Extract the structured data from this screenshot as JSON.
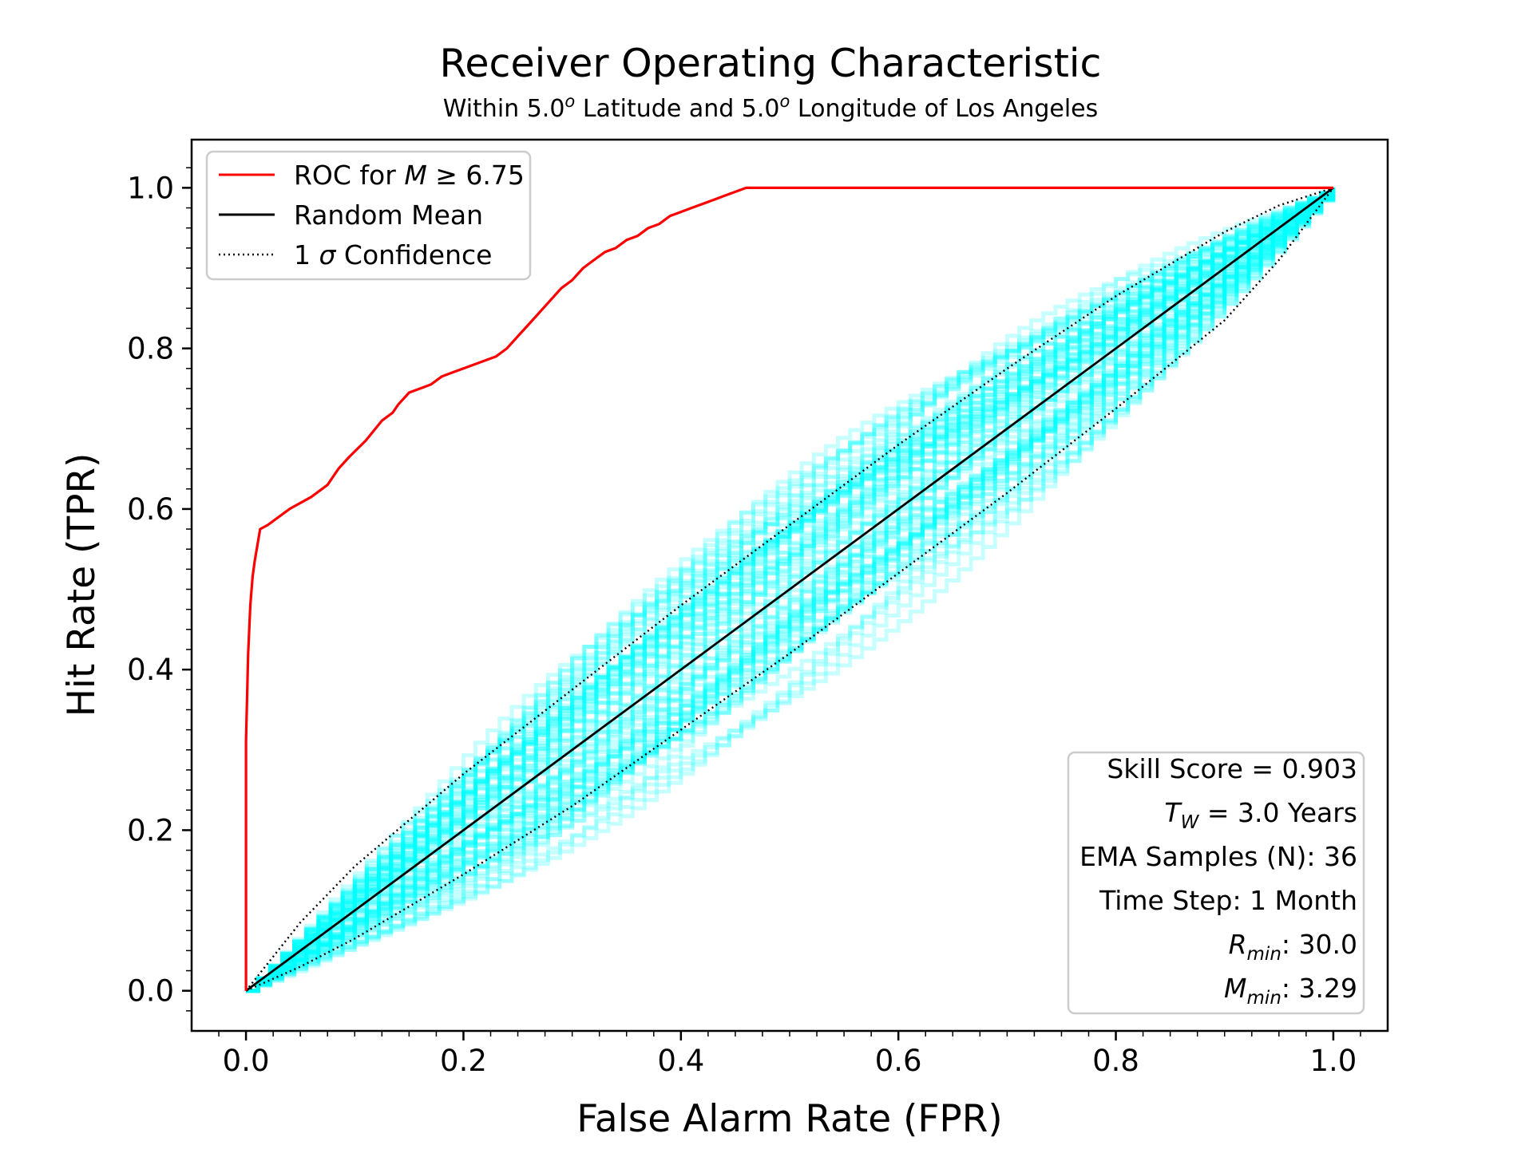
{
  "chart_data": {
    "type": "line",
    "title": "Receiver Operating Characteristic",
    "subtitle_parts": {
      "a": "Within 5.0",
      "a_sup": "o",
      "b": " Latitude and 5.0",
      "b_sup": "o",
      "c": " Longitude of Los Angeles"
    },
    "xlabel": "False Alarm Rate (FPR)",
    "ylabel": "Hit Rate (TPR)",
    "xlim": [
      -0.05,
      1.05
    ],
    "ylim": [
      -0.05,
      1.06
    ],
    "xticks": [
      "0.0",
      "0.2",
      "0.4",
      "0.6",
      "0.8",
      "1.0"
    ],
    "yticks": [
      "0.0",
      "0.2",
      "0.4",
      "0.6",
      "0.8",
      "1.0"
    ],
    "grid": false,
    "legend": {
      "placement": "top-left",
      "entries": [
        {
          "label_prefix": "ROC for ",
          "label_math": "M",
          "label_suffix": " ≥ 6.75",
          "color": "#ff0000",
          "style": "solid"
        },
        {
          "label_prefix": "Random Mean",
          "label_math": "",
          "label_suffix": "",
          "color": "#000000",
          "style": "solid"
        },
        {
          "label_prefix": "1 ",
          "label_math": "σ",
          "label_suffix": " Confidence",
          "color": "#000000",
          "style": "dotted"
        }
      ]
    },
    "info_box": {
      "placement": "bottom-right",
      "skill_score": "Skill Score = 0.903",
      "tw_sym": "T",
      "tw_sub": "W",
      "tw_rest": " = 3.0 Years",
      "ema": "EMA Samples (N): 36",
      "time_step": "Time Step: 1 Month",
      "rmin_sym": "R",
      "rmin_sub": "min",
      "rmin_rest": ": 30.0",
      "mmin_sym": "M",
      "mmin_sub": "min",
      "mmin_rest": ": 3.29"
    },
    "series": [
      {
        "name": "ROC for M ≥ 6.75",
        "color": "#ff0000",
        "x": [
          0.0,
          0.0,
          0.0,
          0.002,
          0.004,
          0.006,
          0.008,
          0.013,
          0.02,
          0.04,
          0.06,
          0.075,
          0.085,
          0.095,
          0.11,
          0.125,
          0.135,
          0.14,
          0.15,
          0.16,
          0.17,
          0.18,
          0.19,
          0.2,
          0.21,
          0.22,
          0.23,
          0.24,
          0.25,
          0.26,
          0.27,
          0.28,
          0.29,
          0.3,
          0.31,
          0.32,
          0.33,
          0.34,
          0.35,
          0.36,
          0.37,
          0.38,
          0.39,
          0.4,
          0.41,
          0.42,
          0.43,
          0.44,
          0.45,
          0.46,
          0.55,
          0.7,
          0.85,
          1.0
        ],
        "y": [
          0.0,
          0.245,
          0.31,
          0.42,
          0.48,
          0.515,
          0.535,
          0.575,
          0.58,
          0.6,
          0.615,
          0.63,
          0.65,
          0.665,
          0.685,
          0.71,
          0.72,
          0.73,
          0.745,
          0.75,
          0.755,
          0.765,
          0.77,
          0.775,
          0.78,
          0.785,
          0.79,
          0.8,
          0.815,
          0.83,
          0.845,
          0.86,
          0.875,
          0.885,
          0.9,
          0.91,
          0.92,
          0.925,
          0.935,
          0.94,
          0.95,
          0.955,
          0.965,
          0.97,
          0.975,
          0.98,
          0.985,
          0.99,
          0.995,
          1.0,
          1.0,
          1.0,
          1.0,
          1.0
        ]
      },
      {
        "name": "Random Mean",
        "color": "#000000",
        "x": [
          0.0,
          1.0
        ],
        "y": [
          0.0,
          1.0
        ]
      },
      {
        "name": "1 σ upper",
        "color": "#000000",
        "x": [
          0.0,
          0.05,
          0.1,
          0.2,
          0.3,
          0.4,
          0.5,
          0.6,
          0.7,
          0.8,
          0.9,
          0.95,
          1.0
        ],
        "y": [
          0.0,
          0.085,
          0.155,
          0.27,
          0.375,
          0.48,
          0.58,
          0.68,
          0.775,
          0.865,
          0.945,
          0.978,
          1.0
        ]
      },
      {
        "name": "1 σ lower",
        "color": "#000000",
        "x": [
          0.0,
          0.05,
          0.1,
          0.2,
          0.3,
          0.4,
          0.5,
          0.6,
          0.7,
          0.8,
          0.9,
          0.95,
          1.0
        ],
        "y": [
          0.0,
          0.03,
          0.065,
          0.145,
          0.23,
          0.325,
          0.42,
          0.52,
          0.62,
          0.725,
          0.835,
          0.91,
          1.0
        ]
      }
    ],
    "ensemble": {
      "color": "#00ffff",
      "count": 80,
      "spread_near_mid": 0.13
    }
  }
}
